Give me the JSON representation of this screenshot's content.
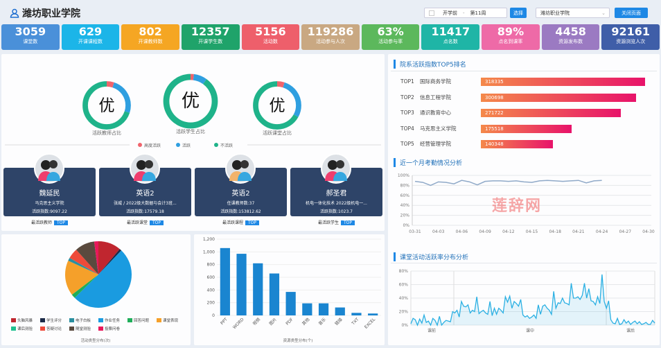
{
  "header": {
    "title": "潍坊职业学院",
    "term_start": "开学前",
    "week": "第11周",
    "select_button": "选择",
    "college": "潍坊职业学院",
    "close_button": "关闭页面"
  },
  "stats": [
    {
      "value": "3059",
      "label": "课堂数",
      "color": "#4a90d9"
    },
    {
      "value": "629",
      "label": "开课课程数",
      "color": "#1cb5e8"
    },
    {
      "value": "802",
      "label": "开课教师数",
      "color": "#f5a623"
    },
    {
      "value": "12357",
      "label": "开课学生数",
      "color": "#1fa36a"
    },
    {
      "value": "5156",
      "label": "活动数",
      "color": "#ee5f6b"
    },
    {
      "value": "119286",
      "label": "活动参与人次",
      "color": "#c9a882"
    },
    {
      "value": "63%",
      "label": "活动参与率",
      "color": "#5cb85c"
    },
    {
      "value": "11417",
      "label": "点名数",
      "color": "#1fb5a6"
    },
    {
      "value": "89%",
      "label": "点名到课率",
      "color": "#ee6aa7"
    },
    {
      "value": "4458",
      "label": "资源发布数",
      "color": "#9b7ac2"
    },
    {
      "value": "92161",
      "label": "资源浏览人次",
      "color": "#3f5ea8"
    }
  ],
  "donuts": {
    "legend": [
      "高度活跃",
      "活跃",
      "不活跃"
    ],
    "colors": [
      "#f0646c",
      "#2f9fe0",
      "#1fb38a"
    ],
    "items": [
      {
        "grade": "优",
        "label": "活跃教师占比",
        "values": [
          5,
          25,
          70
        ]
      },
      {
        "grade": "优",
        "label": "活跃学生占比",
        "values": [
          2,
          8,
          90
        ]
      },
      {
        "grade": "优",
        "label": "活跃课堂占比",
        "values": [
          5,
          28,
          67
        ]
      }
    ]
  },
  "cards": [
    {
      "name": "魏延民",
      "line1": "马克思主义学院",
      "line2": "活跃指数:9097.22",
      "caption": "最活跃教师",
      "badge": "TOP",
      "icon": "couple-avatar-icon"
    },
    {
      "name": "英语2",
      "line1": "张威 / 2022级大数据与会计3班...",
      "line2": "活跃指数:17579.18",
      "caption": "最活跃课堂",
      "badge": "TOP",
      "icon": "books-icon"
    },
    {
      "name": "英语2",
      "line1": "任课教师数:37",
      "line2": "活跃指数:153812.62",
      "caption": "最活跃课程",
      "badge": "TOP",
      "icon": "layers-icon"
    },
    {
      "name": "郝圣君",
      "line1": "机电一体化技术 2022级机电一...",
      "line2": "活跃指数:1023.7",
      "caption": "最活跃学生",
      "badge": "TOP",
      "icon": "student-avatar-icon"
    }
  ],
  "ranking": {
    "title": "院系活跃指数TOP5排名",
    "items": [
      {
        "rank": "TOP1",
        "name": "国际商务学院",
        "value": 318335
      },
      {
        "rank": "TOP2",
        "name": "信息工程学院",
        "value": 300698
      },
      {
        "rank": "TOP3",
        "name": "通识教育中心",
        "value": 271722
      },
      {
        "rank": "TOP4",
        "name": "马克思主义学院",
        "value": 175518
      },
      {
        "rank": "TOP5",
        "name": "经营管理学院",
        "value": 140348
      }
    ]
  },
  "watermark": "莲辞网",
  "chart_data": [
    {
      "type": "pie",
      "title": "活动类型分布(次)",
      "legend": [
        "头脑风暴",
        "学生评分",
        "电子白板",
        "作业任务",
        "回答问题",
        "课堂表现",
        "课后测验",
        "答疑讨论",
        "随堂测验",
        "投票问卷"
      ],
      "colors": [
        "#c0262f",
        "#1b2a48",
        "#2a8fa0",
        "#1a9be0",
        "#1fae5a",
        "#f5a02a",
        "#20c090",
        "#ee4a3a",
        "#5a4a3e",
        "#e8185a"
      ],
      "slice_order": [
        "头脑风暴",
        "学生评分",
        "作业任务",
        "回答问题",
        "课堂表现",
        "电子白板",
        "答疑讨论",
        "随堂测验",
        "投票问卷"
      ],
      "values": [
        11,
        1,
        50,
        2,
        17,
        1.5,
        5,
        9.5,
        2
      ]
    },
    {
      "type": "bar",
      "title": "资源类型分布(个)",
      "categories": [
        "PPT",
        "WORD",
        "视频",
        "图片",
        "PDF",
        "其他",
        "音乐",
        "链接",
        "TXT",
        "EXCEL"
      ],
      "values": [
        1060,
        970,
        820,
        660,
        370,
        190,
        190,
        125,
        40,
        30
      ],
      "ylim": [
        0,
        1200
      ],
      "yticks": [
        "0",
        "200",
        "400",
        "600",
        "800",
        "1,000",
        "1,200"
      ],
      "color": "#1a85d0"
    },
    {
      "type": "line",
      "title": "近一个月考勤情况分析",
      "xticks": [
        "03-31",
        "04-03",
        "04-06",
        "04-09",
        "04-12",
        "04-15",
        "04-18",
        "04-21",
        "04-24",
        "04-27",
        "04-30"
      ],
      "yticks": [
        "0%",
        "20%",
        "40%",
        "60%",
        "80%",
        "100%"
      ],
      "ylim": [
        0,
        100
      ],
      "x_start": "03-31",
      "values": [
        88,
        86,
        80,
        87,
        86,
        83,
        90,
        87,
        81,
        88,
        89,
        89,
        88,
        89,
        87,
        86,
        89,
        90,
        89,
        88,
        89,
        90,
        85,
        89,
        90
      ]
    },
    {
      "type": "area",
      "title": "课堂活动活跃率分布分析",
      "xticks": [
        "课前",
        "课中",
        "课后"
      ],
      "yticks": [
        "0%",
        "20%",
        "40%",
        "60%",
        "80%"
      ],
      "ylim": [
        0,
        80
      ],
      "values": [
        2,
        10,
        8,
        0,
        9,
        3,
        15,
        4,
        6,
        0,
        10,
        7,
        0,
        13,
        0,
        4,
        7,
        6,
        5,
        20,
        18,
        22,
        12,
        35,
        28,
        27,
        30,
        18,
        22,
        20,
        42,
        17,
        20,
        22,
        18,
        16,
        35,
        14,
        25,
        16,
        25,
        22,
        18,
        42,
        34,
        43,
        25,
        35,
        32,
        28,
        38,
        15,
        12,
        14,
        10,
        12,
        15,
        10,
        30,
        16,
        28,
        30,
        25,
        22,
        16,
        50,
        25,
        33,
        32,
        40,
        33,
        32,
        30,
        62,
        40,
        40,
        42,
        38,
        44,
        62,
        40,
        54,
        36,
        35,
        30,
        42,
        32,
        75,
        35,
        25,
        36,
        8,
        3,
        2,
        10,
        1,
        2,
        8,
        3,
        6,
        1,
        4,
        6,
        2,
        5,
        1,
        2,
        4,
        1,
        1,
        7,
        3
      ]
    }
  ]
}
